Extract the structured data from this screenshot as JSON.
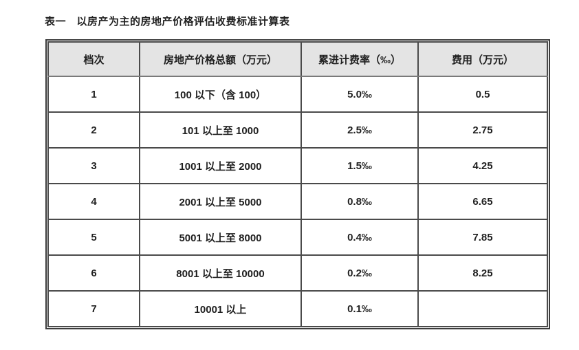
{
  "document": {
    "title": "表一　以房产为主的房地产价格评估收费标准计算表"
  },
  "table": {
    "headers": {
      "grade": "档次",
      "total_price": "房地产价格总额（万元）",
      "progressive_rate": "累进计费率（‰）",
      "fee": "费用（万元）"
    },
    "rows": [
      {
        "grade": "1",
        "total_price": "100 以下（含 100）",
        "progressive_rate": "5.0‰",
        "fee": "0.5"
      },
      {
        "grade": "2",
        "total_price": "101 以上至 1000",
        "progressive_rate": "2.5‰",
        "fee": "2.75"
      },
      {
        "grade": "3",
        "total_price": "1001 以上至 2000",
        "progressive_rate": "1.5‰",
        "fee": "4.25"
      },
      {
        "grade": "4",
        "total_price": "2001 以上至 5000",
        "progressive_rate": "0.8‰",
        "fee": "6.65"
      },
      {
        "grade": "5",
        "total_price": "5001 以上至 8000",
        "progressive_rate": "0.4‰",
        "fee": "7.85"
      },
      {
        "grade": "6",
        "total_price": "8001 以上至 10000",
        "progressive_rate": "0.2‰",
        "fee": "8.25"
      },
      {
        "grade": "7",
        "total_price": "10001 以上",
        "progressive_rate": "0.1‰",
        "fee": ""
      }
    ],
    "colors": {
      "header_background": "#e4e4e4",
      "border": "#4a4a4a",
      "text": "#1f1f1f"
    }
  }
}
